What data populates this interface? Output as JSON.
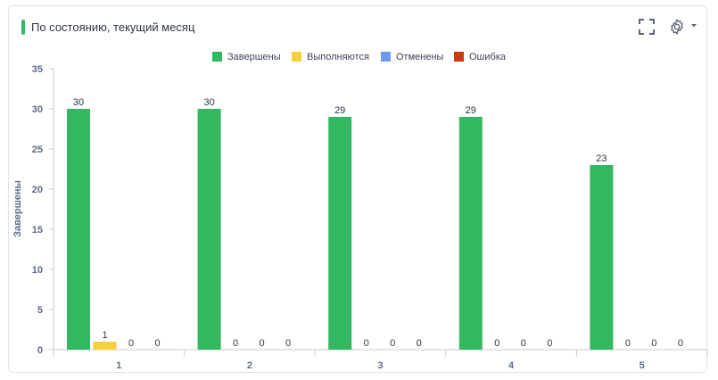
{
  "header": {
    "title": "По состоянию, текущий месяц"
  },
  "icons": {
    "expand": "expand-icon",
    "settings": "gear-icon",
    "menu": "caret-down-icon"
  },
  "chart_data": {
    "type": "bar",
    "title": "По состоянию, текущий месяц",
    "ylabel": "Завершены",
    "xlabel": "",
    "ylim": [
      0,
      35
    ],
    "yticks": [
      0,
      5,
      10,
      15,
      20,
      25,
      30,
      35
    ],
    "grid": false,
    "legend_position": "top",
    "categories": [
      "1",
      "2",
      "3",
      "4",
      "5"
    ],
    "series": [
      {
        "name": "Завершены",
        "color": "#34b85f",
        "values": [
          30,
          30,
          29,
          29,
          23
        ]
      },
      {
        "name": "Выполняются",
        "color": "#f8cf3c",
        "values": [
          1,
          0,
          0,
          0,
          0
        ]
      },
      {
        "name": "Отменены",
        "color": "#6b9af5",
        "values": [
          0,
          0,
          0,
          0,
          0
        ]
      },
      {
        "name": "Ошибка",
        "color": "#c63d0f",
        "values": [
          0,
          0,
          0,
          0,
          0
        ]
      }
    ]
  }
}
